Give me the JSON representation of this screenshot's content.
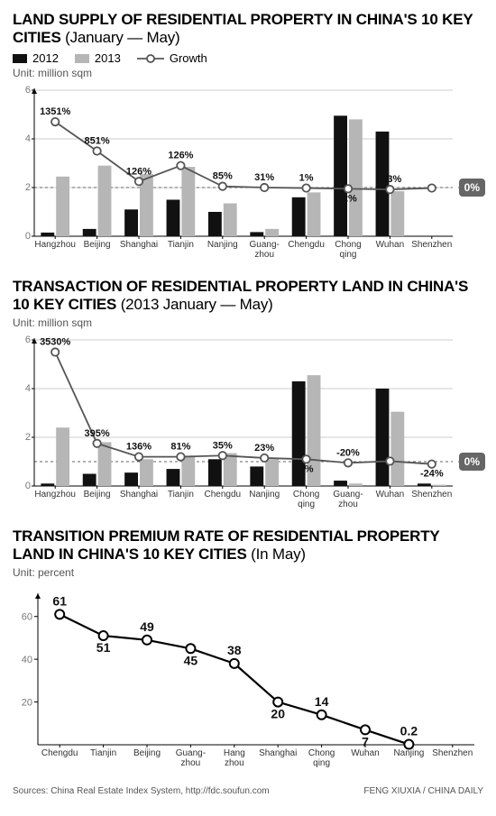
{
  "colors": {
    "bar2012": "#111111",
    "bar2013": "#b6b6b6",
    "growth_line": "#555555",
    "marker_fill": "#ffffff",
    "axis": "#000000",
    "grid": "#cccccc",
    "badge_bg": "#666666",
    "text_muted": "#777777"
  },
  "chart1": {
    "title_bold": "LAND SUPPLY OF RESIDENTIAL PROPERTY IN CHINA'S 10 KEY CITIES",
    "title_light": " (January — May)",
    "legend": {
      "a": "2012",
      "b": "2013",
      "c": "Growth"
    },
    "unit": "Unit: million sqm",
    "ylim": [
      0,
      6
    ],
    "ytick_step": 2,
    "dashed_ref": 2,
    "zero_badge": "0%",
    "categories": [
      "Hangzhou",
      "Beijing",
      "Shanghai",
      "Tianjin",
      "Nanjing",
      "Guang-\nzhou",
      "Chengdu",
      "Chong\nqing",
      "Wuhan",
      "Shenzhen"
    ],
    "bars_2012": [
      0.15,
      0.3,
      1.1,
      1.5,
      1.0,
      0.17,
      1.6,
      4.95,
      4.3,
      0
    ],
    "bars_2013": [
      2.45,
      2.9,
      2.55,
      2.85,
      1.35,
      0.3,
      1.8,
      4.8,
      1.85,
      0
    ],
    "growth_y": [
      4.7,
      3.5,
      2.25,
      2.9,
      2.05,
      2.0,
      1.98,
      1.95,
      1.92,
      1.98
    ],
    "growth_labels": [
      "1351%",
      "851%",
      "126%",
      "126%",
      "85%",
      "31%",
      "1%",
      "-2%",
      "-53%",
      ""
    ],
    "label_above": [
      true,
      true,
      true,
      true,
      true,
      true,
      true,
      false,
      true,
      false
    ]
  },
  "chart2": {
    "title_bold": "TRANSACTION OF RESIDENTIAL PROPERTY LAND IN CHINA'S 10 KEY CITIES",
    "title_light": " (2013 January — May)",
    "unit": "Unit: million sqm",
    "ylim": [
      0,
      6
    ],
    "ytick_step": 2,
    "dashed_ref": 1,
    "zero_badge": "0%",
    "categories": [
      "Hangzhou",
      "Beijing",
      "Shanghai",
      "Tianjin",
      "Chengdu",
      "Nanjing",
      "Chong\nqing",
      "Guang-\nzhou",
      "Wuhan",
      "Shenzhen"
    ],
    "bars_2012": [
      0.1,
      0.5,
      0.55,
      0.7,
      1.1,
      0.8,
      4.3,
      0.22,
      4.0,
      0.1
    ],
    "bars_2013": [
      2.4,
      1.8,
      1.1,
      1.25,
      1.35,
      1.1,
      4.55,
      0.1,
      3.05,
      0.05
    ],
    "growth_y": [
      5.5,
      1.75,
      1.2,
      1.2,
      1.25,
      1.15,
      1.1,
      0.95,
      1.02,
      0.9
    ],
    "growth_labels": [
      "3530%",
      "395%",
      "136%",
      "81%",
      "35%",
      "23%",
      "4%",
      "-20%",
      "",
      "-24%"
    ],
    "label_above": [
      true,
      true,
      true,
      true,
      true,
      true,
      false,
      true,
      false,
      false
    ]
  },
  "chart3": {
    "title_bold": "TRANSITION PREMIUM RATE OF RESIDENTIAL PROPERTY LAND IN CHINA'S 10 KEY CITIES",
    "title_light": " (In May)",
    "unit": "Unit: percent",
    "ylim": [
      0,
      70
    ],
    "yticks": [
      20,
      40,
      60
    ],
    "categories": [
      "Chengdu",
      "Tianjin",
      "Beijing",
      "Guang-\nzhou",
      "Hang\nzhou",
      "Shanghai",
      "Chong\nqing",
      "Wuhan",
      "Nanjing",
      "Shenzhen"
    ],
    "values": [
      61,
      51,
      49,
      45,
      38,
      20,
      14,
      7,
      0.2,
      null
    ],
    "labels": [
      "61",
      "51",
      "49",
      "45",
      "38",
      "20",
      "14",
      "7",
      "0.2",
      ""
    ],
    "label_above": [
      true,
      false,
      true,
      false,
      true,
      false,
      true,
      false,
      true,
      false
    ]
  },
  "footer": {
    "source": "Sources: China Real Estate Index System, http://fdc.soufun.com",
    "credit": "FENG XIUXIA / CHINA DAILY"
  }
}
